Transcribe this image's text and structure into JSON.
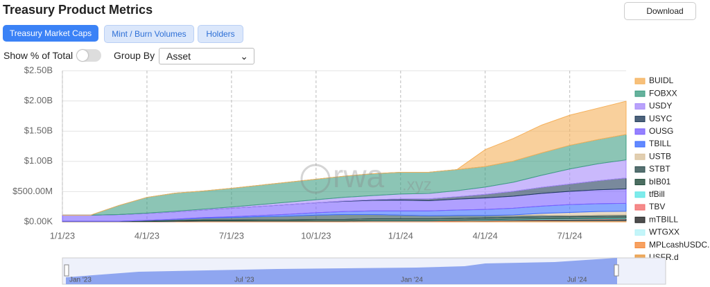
{
  "ui": {
    "title": "Treasury Product Metrics",
    "download": "Download",
    "tabs": [
      "Treasury Market Caps",
      "Mint / Burn Volumes",
      "Holders"
    ],
    "toggle_label": "Show % of Total",
    "group_by_label": "Group By",
    "group_by_value": "Asset",
    "watermark": "rwa",
    "watermark_suffix": ".xyz",
    "navigator_labels": [
      "Jan '23",
      "Jul '23",
      "Jan '24",
      "Jul '24"
    ]
  },
  "chart_data": {
    "type": "stacked-area",
    "x": [
      "1/1/23",
      "2/1/23",
      "3/1/23",
      "4/1/23",
      "5/1/23",
      "6/1/23",
      "7/1/23",
      "8/1/23",
      "9/1/23",
      "10/1/23",
      "11/1/23",
      "12/1/23",
      "1/1/24",
      "2/1/24",
      "3/1/24",
      "4/1/24",
      "5/1/24",
      "6/1/24",
      "7/1/24",
      "8/1/24",
      "9/1/24"
    ],
    "xticks": [
      "1/1/23",
      "4/1/23",
      "7/1/23",
      "10/1/23",
      "1/1/24",
      "4/1/24",
      "7/1/24"
    ],
    "ylim": [
      0,
      2500000000.0
    ],
    "yticks": [
      {
        "value": 0,
        "label": "$0.00K"
      },
      {
        "value": 500000000.0,
        "label": "$500.00M"
      },
      {
        "value": 1000000000.0,
        "label": "$1.00B"
      },
      {
        "value": 1500000000.0,
        "label": "$1.50B"
      },
      {
        "value": 2000000000.0,
        "label": "$2.00B"
      },
      {
        "value": 2500000000.0,
        "label": "$2.50B"
      }
    ],
    "grid": true,
    "series": [
      {
        "name": "BUIDL",
        "color": "#f5b05a",
        "values": [
          0,
          0,
          0,
          0,
          0,
          0,
          0,
          0,
          0,
          0,
          0,
          0,
          0,
          0,
          0,
          280000000.0,
          375000000.0,
          460000000.0,
          500000000.0,
          520000000.0,
          550000000.0
        ]
      },
      {
        "name": "FOBXX",
        "color": "#3f9e83",
        "values": [
          0,
          0,
          150000000.0,
          260000000.0,
          300000000.0,
          300000000.0,
          310000000.0,
          320000000.0,
          330000000.0,
          340000000.0,
          350000000.0,
          360000000.0,
          360000000.0,
          350000000.0,
          350000000.0,
          340000000.0,
          350000000.0,
          370000000.0,
          390000000.0,
          400000000.0,
          420000000.0
        ]
      },
      {
        "name": "USDY",
        "color": "#a78bfa",
        "values": [
          0,
          0,
          0,
          5000000.0,
          10000000.0,
          15000000.0,
          20000000.0,
          30000000.0,
          40000000.0,
          50000000.0,
          60000000.0,
          70000000.0,
          80000000.0,
          90000000.0,
          100000000.0,
          120000000.0,
          150000000.0,
          200000000.0,
          250000000.0,
          280000000.0,
          300000000.0
        ]
      },
      {
        "name": "USYC",
        "color": "#1f3b5a",
        "values": [
          0,
          0,
          0,
          0,
          0,
          0,
          0,
          0,
          0,
          0,
          5000000.0,
          10000000.0,
          20000000.0,
          30000000.0,
          40000000.0,
          60000000.0,
          80000000.0,
          100000000.0,
          120000000.0,
          150000000.0,
          180000000.0
        ]
      },
      {
        "name": "OUSG",
        "color": "#7b61ff",
        "values": [
          100000000.0,
          100000000.0,
          110000000.0,
          115000000.0,
          120000000.0,
          125000000.0,
          140000000.0,
          150000000.0,
          160000000.0,
          165000000.0,
          170000000.0,
          175000000.0,
          180000000.0,
          170000000.0,
          180000000.0,
          190000000.0,
          200000000.0,
          210000000.0,
          220000000.0,
          230000000.0,
          240000000.0
        ]
      },
      {
        "name": "TBILL",
        "color": "#3b6cff",
        "values": [
          0,
          0,
          0,
          0,
          5000000.0,
          10000000.0,
          15000000.0,
          20000000.0,
          30000000.0,
          40000000.0,
          50000000.0,
          60000000.0,
          70000000.0,
          80000000.0,
          90000000.0,
          100000000.0,
          110000000.0,
          120000000.0,
          130000000.0,
          130000000.0,
          130000000.0
        ]
      },
      {
        "name": "USTB",
        "color": "#d9c29c",
        "values": [
          0,
          0,
          0,
          0,
          0,
          0,
          0,
          0,
          0,
          0,
          0,
          0,
          0,
          0,
          0,
          0,
          10000000.0,
          30000000.0,
          50000000.0,
          60000000.0,
          60000000.0
        ]
      },
      {
        "name": "STBT",
        "color": "#2c4e4e",
        "values": [
          0,
          0,
          0,
          10000000.0,
          20000000.0,
          30000000.0,
          40000000.0,
          50000000.0,
          60000000.0,
          70000000.0,
          80000000.0,
          70000000.0,
          60000000.0,
          50000000.0,
          50000000.0,
          40000000.0,
          30000000.0,
          30000000.0,
          20000000.0,
          20000000.0,
          20000000.0
        ]
      },
      {
        "name": "bIB01",
        "color": "#1f4a3a",
        "values": [
          5000000.0,
          5000000.0,
          5000000.0,
          10000000.0,
          10000000.0,
          15000000.0,
          15000000.0,
          20000000.0,
          20000000.0,
          25000000.0,
          25000000.0,
          30000000.0,
          30000000.0,
          30000000.0,
          30000000.0,
          30000000.0,
          30000000.0,
          30000000.0,
          30000000.0,
          30000000.0,
          30000000.0
        ]
      },
      {
        "name": "tfBill",
        "color": "#5ee6e6",
        "values": [
          0,
          0,
          0,
          0,
          0,
          0,
          0,
          0,
          0,
          0,
          0,
          5000000.0,
          5000000.0,
          5000000.0,
          5000000.0,
          10000000.0,
          10000000.0,
          10000000.0,
          10000000.0,
          10000000.0,
          10000000.0
        ]
      },
      {
        "name": "TBV",
        "color": "#f26d6d",
        "values": [
          5000000.0,
          5000000.0,
          5000000.0,
          5000000.0,
          5000000.0,
          5000000.0,
          5000000.0,
          5000000.0,
          5000000.0,
          5000000.0,
          5000000.0,
          5000000.0,
          5000000.0,
          5000000.0,
          5000000.0,
          5000000.0,
          5000000.0,
          5000000.0,
          5000000.0,
          5000000.0,
          5000000.0
        ]
      },
      {
        "name": "mTBILL",
        "color": "#222222",
        "values": [
          0,
          0,
          0,
          0,
          0,
          0,
          0,
          0,
          0,
          0,
          0,
          0,
          0,
          0,
          0,
          5000000.0,
          10000000.0,
          15000000.0,
          20000000.0,
          25000000.0,
          30000000.0
        ]
      },
      {
        "name": "WTGXX",
        "color": "#b5f2f7",
        "values": [
          0,
          0,
          0,
          0,
          0,
          0,
          0,
          0,
          0,
          0,
          0,
          0,
          0,
          0,
          0,
          0,
          5000000.0,
          5000000.0,
          5000000.0,
          5000000.0,
          5000000.0
        ]
      },
      {
        "name": "MPLcashUSDC.",
        "color": "#f58a3a",
        "values": [
          0,
          0,
          0,
          0,
          5000000.0,
          10000000.0,
          10000000.0,
          10000000.0,
          10000000.0,
          10000000.0,
          10000000.0,
          10000000.0,
          10000000.0,
          10000000.0,
          10000000.0,
          10000000.0,
          10000000.0,
          10000000.0,
          10000000.0,
          10000000.0,
          10000000.0
        ]
      },
      {
        "name": "USFR.d",
        "color": "#e8963a",
        "values": [
          0,
          0,
          0,
          0,
          0,
          0,
          0,
          0,
          0,
          0,
          0,
          0,
          0,
          0,
          5000000.0,
          5000000.0,
          5000000.0,
          5000000.0,
          5000000.0,
          5000000.0,
          5000000.0
        ]
      }
    ]
  }
}
